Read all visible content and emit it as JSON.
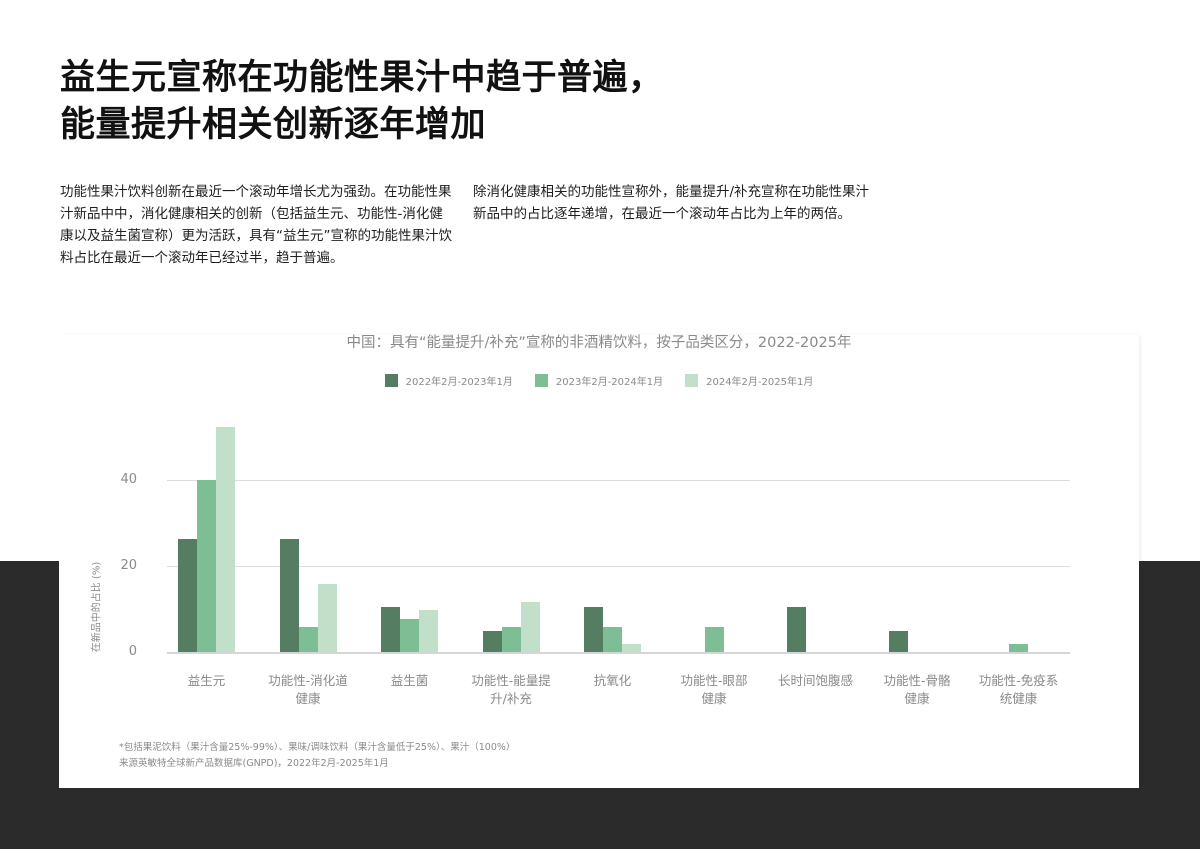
{
  "headline": {
    "line1": "益生元宣称在功能性果汁中趋于普遍，",
    "line2": "能量提升相关创新逐年增加"
  },
  "paragraphs": {
    "left": "功能性果汁饮料创新在最近一个滚动年增长尤为强劲。在功能性果汁新品中中，消化健康相关的创新（包括益生元、功能性-消化健康以及益生菌宣称）更为活跃，具有“益生元”宣称的功能性果汁饮料占比在最近一个滚动年已经过半，趋于普遍。",
    "right": "除消化健康相关的功能性宣称外，能量提升/补充宣称在功能性果汁新品中的占比逐年递增，在最近一个滚动年占比为上年的两倍。"
  },
  "colors": {
    "series_2022": "#557d62",
    "series_2023": "#7dbe94",
    "series_2024": "#c2e0c9",
    "dark_band": "#2b2b2b"
  },
  "chart_data": {
    "type": "bar",
    "title": "中国：具有“能量提升/补充”宣称的非酒精饮料，按子品类区分，2022-2025年",
    "xlabel": "",
    "ylabel": "在新品中的占比 (%)",
    "ylim": [
      0,
      55
    ],
    "yticks": [
      0,
      20,
      40
    ],
    "grid": true,
    "legend_position": "top",
    "categories": [
      "益生元",
      "功能性-消化道健康",
      "益生菌",
      "功能性-能量提升/补充",
      "抗氧化",
      "功能性-眼部健康",
      "长时间饱腹感",
      "功能性-骨骼健康",
      "功能性-免疫系统健康"
    ],
    "category_labels": [
      [
        "益生元"
      ],
      [
        "功能性-消化道",
        "健康"
      ],
      [
        "益生菌"
      ],
      [
        "功能性-能量提",
        "升/补充"
      ],
      [
        "抗氧化"
      ],
      [
        "功能性-眼部",
        "健康"
      ],
      [
        "长时间饱腹感"
      ],
      [
        "功能性-骨骼",
        "健康"
      ],
      [
        "功能性-免疫系",
        "统健康"
      ]
    ],
    "series": [
      {
        "name": "2022年2月-2023年1月",
        "values": [
          26.3,
          26.3,
          10.5,
          5.0,
          10.5,
          0,
          10.5,
          5.0,
          0
        ]
      },
      {
        "name": "2023年2月-2024年1月",
        "values": [
          40.0,
          5.9,
          7.7,
          5.9,
          5.9,
          5.9,
          0,
          0,
          1.9
        ]
      },
      {
        "name": "2024年2月-2025年1月",
        "values": [
          52.3,
          15.8,
          9.8,
          11.6,
          1.9,
          0,
          0,
          0,
          0
        ]
      }
    ]
  },
  "footnotes": {
    "note": "*包括果泥饮料（果汁含量25%-99%）、果味/调味饮料（果汁含量低于25%）、果汁（100%）",
    "source": "来源英敏特全球新产品数据库(GNPD)，2022年2月-2025年1月"
  }
}
